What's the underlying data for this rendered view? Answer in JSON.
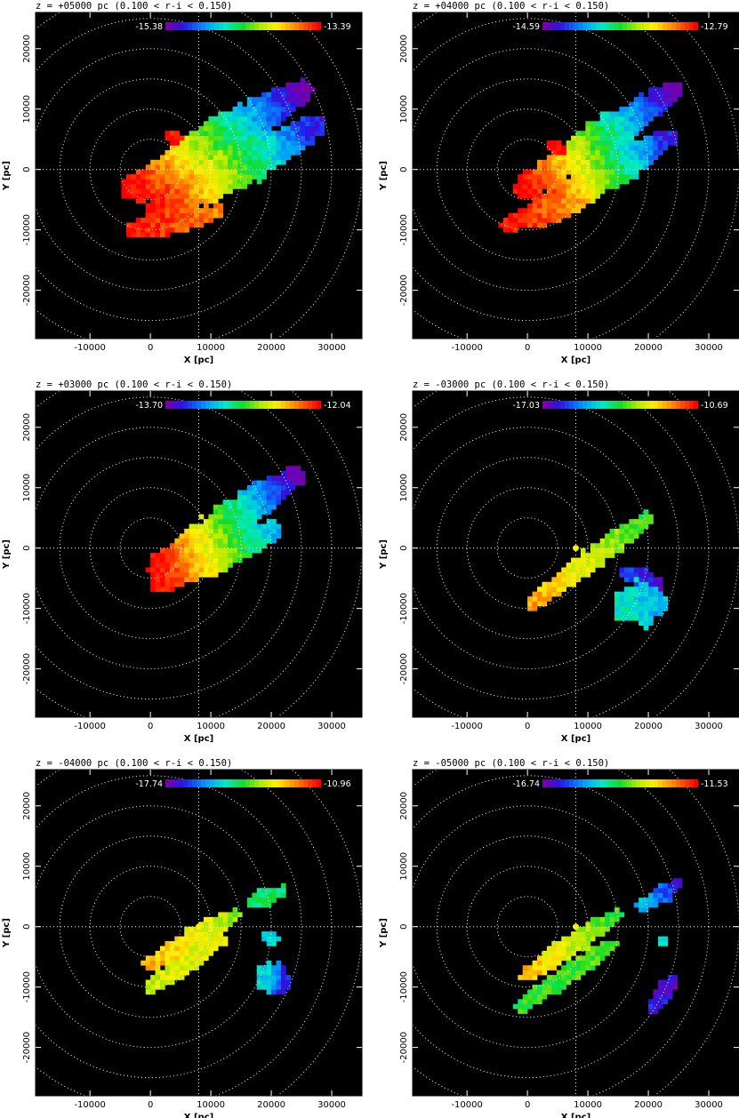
{
  "chart_data": [
    {
      "type": "heatmap",
      "title": "z = +05000 pc (0.100 < r-i < 0.150)",
      "xlabel": "X [pc]",
      "ylabel": "Y [pc]",
      "xlim": [
        -19000,
        35000
      ],
      "ylim": [
        -28000,
        26000
      ],
      "xticks": [
        -10000,
        0,
        10000,
        20000,
        30000
      ],
      "yticks": [
        -20000,
        -10000,
        0,
        10000,
        20000
      ],
      "sun_position": [
        8000,
        0
      ],
      "ring_radii": [
        5000,
        10000,
        15000,
        20000,
        25000,
        30000,
        35000
      ],
      "colorbar": {
        "min": "-15.38",
        "max": "-13.39"
      },
      "structures": [
        {
          "x0": -2000,
          "y0": -3000,
          "x1": 25000,
          "y1": 13000,
          "width": 3500,
          "c0": 1.0,
          "c1": 0.0
        },
        {
          "x0": 2000,
          "y0": -6000,
          "x1": 27000,
          "y1": 7000,
          "width": 3500,
          "c0": 1.0,
          "c1": 0.1
        },
        {
          "x0": -3000,
          "y0": -10000,
          "x1": 11000,
          "y1": -7000,
          "width": 2000,
          "c0": 1.0,
          "c1": 0.85
        },
        {
          "x0": 3000,
          "y0": 5500,
          "x1": 5000,
          "y1": 5000,
          "width": 1200,
          "c0": 1.0,
          "c1": 1.0
        }
      ]
    },
    {
      "type": "heatmap",
      "title": "z = +04000 pc (0.100 < r-i < 0.150)",
      "xlabel": "X [pc]",
      "ylabel": "Y [pc]",
      "xlim": [
        -19000,
        35000
      ],
      "ylim": [
        -28000,
        26000
      ],
      "xticks": [
        -10000,
        0,
        10000,
        20000,
        30000
      ],
      "yticks": [
        -20000,
        -10000,
        0,
        10000,
        20000
      ],
      "sun_position": [
        8000,
        0
      ],
      "ring_radii": [
        5000,
        10000,
        15000,
        20000,
        25000,
        30000,
        35000
      ],
      "colorbar": {
        "min": "-14.59",
        "max": "-12.79"
      },
      "structures": [
        {
          "x0": 0,
          "y0": -3000,
          "x1": 24000,
          "y1": 13000,
          "width": 3000,
          "c0": 1.0,
          "c1": 0.0
        },
        {
          "x0": 3000,
          "y0": -6000,
          "x1": 23000,
          "y1": 5000,
          "width": 3000,
          "c0": 1.0,
          "c1": 0.1
        },
        {
          "x0": -3000,
          "y0": -9000,
          "x1": 9000,
          "y1": -5000,
          "width": 2000,
          "c0": 1.0,
          "c1": 0.8
        },
        {
          "x0": 4000,
          "y0": 4000,
          "x1": 6000,
          "y1": 3500,
          "width": 1200,
          "c0": 1.0,
          "c1": 1.0
        }
      ]
    },
    {
      "type": "heatmap",
      "title": "z = +03000 pc (0.100 < r-i < 0.150)",
      "xlabel": "X [pc]",
      "ylabel": "Y [pc]",
      "xlim": [
        -19000,
        35000
      ],
      "ylim": [
        -28000,
        26000
      ],
      "xticks": [
        -10000,
        0,
        10000,
        20000,
        30000
      ],
      "yticks": [
        -20000,
        -10000,
        0,
        10000,
        20000
      ],
      "sun_position": [
        8000,
        0
      ],
      "ring_radii": [
        5000,
        10000,
        15000,
        20000,
        25000,
        30000,
        35000
      ],
      "colorbar": {
        "min": "-13.70",
        "max": "-12.04"
      },
      "structures": [
        {
          "x0": 2000,
          "y0": -3000,
          "x1": 24000,
          "y1": 12000,
          "width": 3000,
          "c0": 1.0,
          "c1": 0.0
        },
        {
          "x0": 2000,
          "y0": -5000,
          "x1": 20000,
          "y1": 3000,
          "width": 3000,
          "c0": 1.0,
          "c1": 0.3
        }
      ]
    },
    {
      "type": "heatmap",
      "title": "z = -03000 pc (0.100 < r-i < 0.150)",
      "xlabel": "X [pc]",
      "ylabel": "Y [pc]",
      "xlim": [
        -19000,
        35000
      ],
      "ylim": [
        -28000,
        26000
      ],
      "xticks": [
        -10000,
        0,
        10000,
        20000,
        30000
      ],
      "yticks": [
        -20000,
        -10000,
        0,
        10000,
        20000
      ],
      "sun_position": [
        8000,
        0
      ],
      "ring_radii": [
        5000,
        10000,
        15000,
        20000,
        25000,
        30000,
        35000
      ],
      "colorbar": {
        "min": "-17.03",
        "max": "-10.69"
      },
      "structures": [
        {
          "x0": 1000,
          "y0": -9000,
          "x1": 20000,
          "y1": 5000,
          "width": 1800,
          "c0": 0.82,
          "c1": 0.5
        },
        {
          "x0": 16000,
          "y0": -4000,
          "x1": 22000,
          "y1": -6000,
          "width": 1500,
          "c0": 0.15,
          "c1": 0.05
        },
        {
          "x0": 17000,
          "y0": -9500,
          "x1": 21000,
          "y1": -9000,
          "width": 3800,
          "c0": 0.38,
          "c1": 0.3
        }
      ]
    },
    {
      "type": "heatmap",
      "title": "z = -04000 pc (0.100 < r-i < 0.150)",
      "xlabel": "X [pc]",
      "ylabel": "Y [pc]",
      "xlim": [
        -19000,
        35000
      ],
      "ylim": [
        -28000,
        26000
      ],
      "xticks": [
        -10000,
        0,
        10000,
        20000,
        30000
      ],
      "yticks": [
        -20000,
        -10000,
        0,
        10000,
        20000
      ],
      "sun_position": [
        8000,
        0
      ],
      "ring_radii": [
        5000,
        10000,
        15000,
        20000,
        25000,
        30000,
        35000
      ],
      "colorbar": {
        "min": "-17.74",
        "max": "-10.96"
      },
      "structures": [
        {
          "x0": 0,
          "y0": -6000,
          "x1": 14000,
          "y1": 2000,
          "width": 1800,
          "c0": 0.8,
          "c1": 0.6
        },
        {
          "x0": 0,
          "y0": -10000,
          "x1": 12000,
          "y1": -2000,
          "width": 1600,
          "c0": 0.65,
          "c1": 0.7
        },
        {
          "x0": 17000,
          "y0": 4000,
          "x1": 22000,
          "y1": 6000,
          "width": 1500,
          "c0": 0.45,
          "c1": 0.45
        },
        {
          "x0": 19000,
          "y0": -2000,
          "x1": 21000,
          "y1": -2000,
          "width": 1000,
          "c0": 0.35,
          "c1": 0.35
        },
        {
          "x0": 19500,
          "y0": -8500,
          "x1": 22000,
          "y1": -9000,
          "width": 3000,
          "c0": 0.35,
          "c1": 0.1
        }
      ]
    },
    {
      "type": "heatmap",
      "title": "z = -05000 pc (0.100 < r-i < 0.150)",
      "xlabel": "X [pc]",
      "ylabel": "Y [pc]",
      "xlim": [
        -19000,
        35000
      ],
      "ylim": [
        -28000,
        26000
      ],
      "xticks": [
        -10000,
        0,
        10000,
        20000,
        30000
      ],
      "yticks": [
        -20000,
        -10000,
        0,
        10000,
        20000
      ],
      "sun_position": [
        8000,
        0
      ],
      "ring_radii": [
        5000,
        10000,
        15000,
        20000,
        25000,
        30000,
        35000
      ],
      "colorbar": {
        "min": "-16.74",
        "max": "-11.53"
      },
      "structures": [
        {
          "x0": 0,
          "y0": -8000,
          "x1": 15000,
          "y1": 2000,
          "width": 1800,
          "c0": 0.8,
          "c1": 0.5
        },
        {
          "x0": -1000,
          "y0": -13000,
          "x1": 14000,
          "y1": -3000,
          "width": 1600,
          "c0": 0.5,
          "c1": 0.55
        },
        {
          "x0": 19000,
          "y0": 3500,
          "x1": 25000,
          "y1": 7000,
          "width": 1500,
          "c0": 0.3,
          "c1": 0.1
        },
        {
          "x0": 22000,
          "y0": -2000,
          "x1": 23000,
          "y1": -3000,
          "width": 900,
          "c0": 0.35,
          "c1": 0.35
        },
        {
          "x0": 21000,
          "y0": -13000,
          "x1": 24000,
          "y1": -9000,
          "width": 1600,
          "c0": 0.1,
          "c1": 0.05
        }
      ]
    }
  ]
}
